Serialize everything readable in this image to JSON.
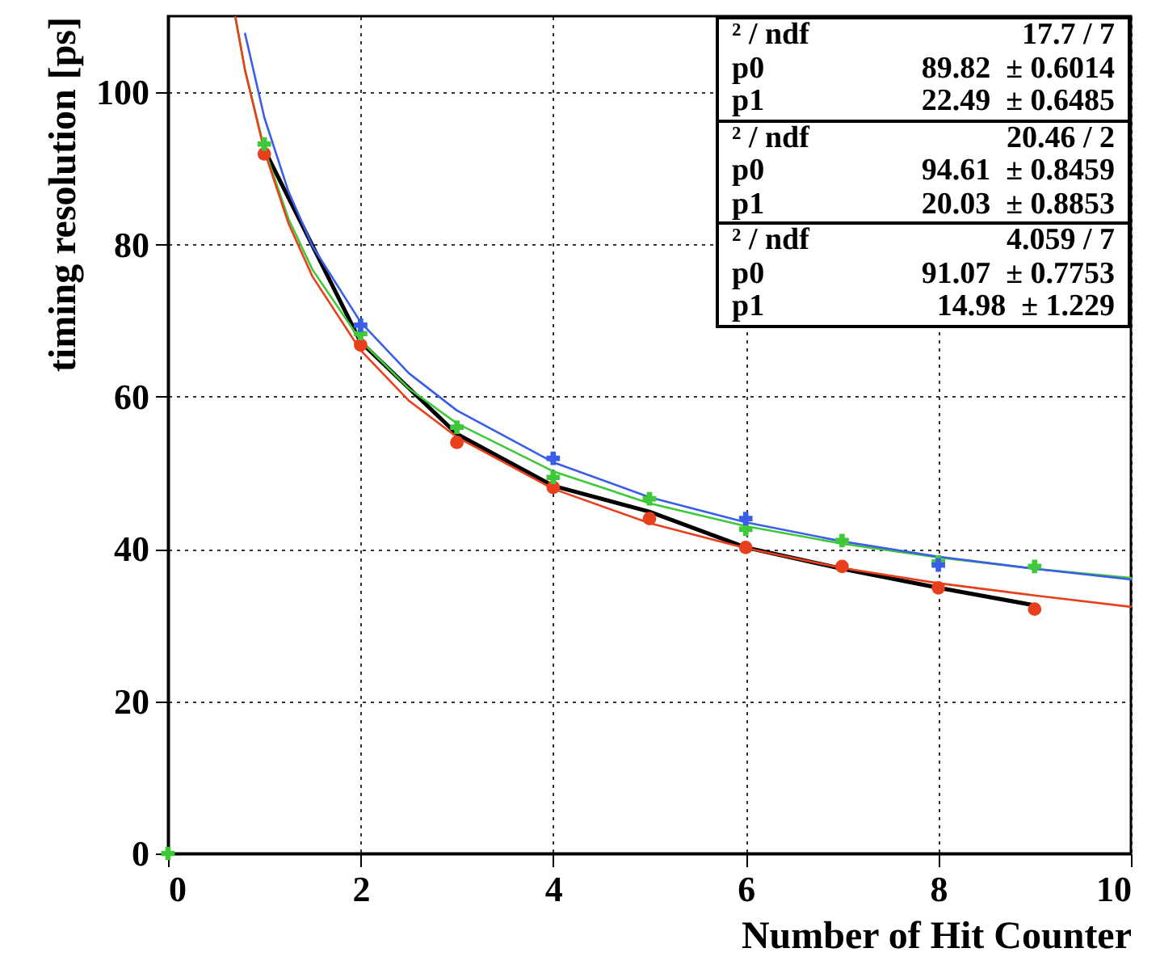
{
  "chart_data": {
    "type": "scatter",
    "xlabel": "Number of Hit Counter",
    "ylabel": "timing resolution [ps]",
    "xlim": [
      0,
      10
    ],
    "xticks": [
      0,
      2,
      4,
      6,
      8,
      10
    ],
    "ylim": [
      0,
      110
    ],
    "yticks": [
      0,
      20,
      40,
      60,
      80,
      100
    ],
    "grid": true,
    "series": [
      {
        "type": "scatter",
        "marker": "circle",
        "color": "#e8401c",
        "x": [
          1,
          2,
          3,
          4,
          5,
          6,
          7,
          8,
          9
        ],
        "values": [
          91.9,
          66.8,
          54.0,
          48.1,
          44.0,
          40.2,
          37.7,
          34.9,
          32.1
        ]
      },
      {
        "type": "scatter",
        "marker": "cross",
        "color": "#3ec83a",
        "x": [
          0,
          1,
          2,
          3,
          4,
          5,
          6,
          7,
          8,
          9
        ],
        "values": [
          0,
          93.2,
          68.3,
          56.0,
          49.4,
          46.6,
          42.6,
          41.1,
          38.3,
          37.7
        ]
      },
      {
        "type": "scatter",
        "marker": "cross",
        "color": "#3a5ee8",
        "x": [
          2,
          4,
          6,
          8
        ],
        "values": [
          69.4,
          51.9,
          44.0,
          37.9
        ]
      },
      {
        "type": "line",
        "marker": "none",
        "color": "#000000",
        "x": [
          1,
          2,
          3,
          4,
          5,
          6,
          7,
          8,
          9
        ],
        "values": [
          92.5,
          67.2,
          55.1,
          48.3,
          44.9,
          40.2,
          37.4,
          34.9,
          32.6
        ]
      },
      {
        "type": "line",
        "marker": "none",
        "color": "#3ec83a",
        "x": [
          0.7,
          0.8,
          1,
          1.25,
          1.5,
          2,
          2.5,
          3,
          4,
          5,
          6,
          7,
          8,
          9,
          10
        ],
        "values": [
          109.7,
          102.9,
          92.6,
          83.4,
          76.7,
          67.4,
          61.1,
          56.5,
          50.2,
          46.0,
          43.0,
          40.7,
          38.9,
          37.4,
          36.2
        ]
      },
      {
        "type": "line",
        "marker": "none",
        "color": "#3a5ee8",
        "x": [
          0.8,
          1,
          1.25,
          1.5,
          2,
          2.5,
          3,
          4,
          5,
          6,
          7,
          8,
          9,
          10
        ],
        "values": [
          107.7,
          96.7,
          87.0,
          79.8,
          69.8,
          63.1,
          58.2,
          51.4,
          46.8,
          43.5,
          41.0,
          39.0,
          37.4,
          36.0
        ]
      },
      {
        "type": "line",
        "marker": "none",
        "color": "#e8401c",
        "x": [
          0.7,
          0.8,
          1,
          1.25,
          1.5,
          2,
          2.5,
          3,
          4,
          5,
          6,
          7,
          8,
          9,
          10
        ],
        "values": [
          109.9,
          102.9,
          92.3,
          82.8,
          75.8,
          66.1,
          59.5,
          54.7,
          47.9,
          43.4,
          40.1,
          37.5,
          35.5,
          33.9,
          32.4
        ]
      }
    ],
    "annotations": [
      "² / ndf",
      "17.7 / 7",
      "p0",
      "89.82  ± 0.6014",
      "p1",
      "22.49  ± 0.6485",
      "² / ndf",
      "20.46 / 2",
      "p0",
      "94.61  ± 0.8459",
      "p1",
      "20.03  ± 0.8853",
      "² / ndf",
      "4.059 / 7",
      "p0",
      "91.07  ± 0.7753",
      "p1",
      "14.98  ± 1.229"
    ]
  }
}
